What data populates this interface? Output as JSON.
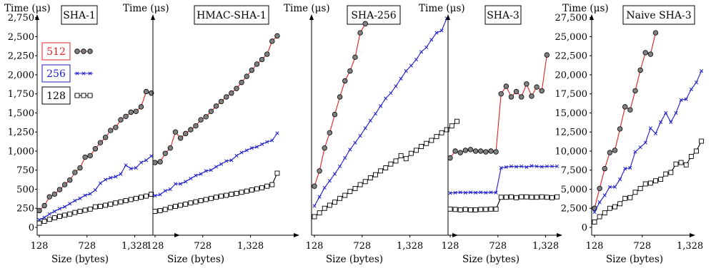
{
  "chart_data": [
    {
      "type": "line",
      "title": "SHA-1",
      "ylabel": "Time (μs)",
      "xlabel": "Size (bytes)",
      "xticks": [
        128,
        728,
        1328
      ],
      "xtick_labels": [
        "128",
        "728",
        "1,328"
      ],
      "yticks": [
        0,
        250,
        500,
        750,
        1000,
        1250,
        1500,
        1750,
        2000,
        2250,
        2500,
        2750
      ],
      "ytick_labels": [
        "0",
        "250",
        "500",
        "750",
        "1,000",
        "1,250",
        "1,500",
        "1,750",
        "2,000",
        "2,250",
        "2,500",
        "2,750"
      ],
      "ylim": [
        0,
        2850
      ],
      "xlim": [
        128,
        1900
      ],
      "legend": {
        "entries": [
          {
            "label": "512",
            "color": "#e02020"
          },
          {
            "label": "256",
            "color": "#1c1cc8"
          },
          {
            "label": "128",
            "color": "#000000"
          }
        ]
      },
      "series": [
        {
          "name": "512",
          "color": "#e02020",
          "marker": "circle",
          "start": 128,
          "step": 64,
          "values": [
            220,
            285,
            400,
            435,
            495,
            560,
            620,
            720,
            780,
            920,
            940,
            1030,
            1110,
            1180,
            1270,
            1310,
            1410,
            1455,
            1510,
            1520,
            1580,
            1780,
            1760
          ]
        },
        {
          "name": "256",
          "color": "#1c1cc8",
          "marker": "x",
          "start": 128,
          "step": 64,
          "values": [
            100,
            130,
            175,
            210,
            245,
            270,
            310,
            350,
            380,
            420,
            440,
            490,
            580,
            625,
            650,
            665,
            700,
            815,
            770,
            780,
            850,
            880,
            935
          ]
        },
        {
          "name": "128",
          "color": "#000000",
          "marker": "square",
          "start": 128,
          "step": 64,
          "values": [
            55,
            80,
            105,
            125,
            145,
            160,
            175,
            195,
            210,
            225,
            240,
            270,
            275,
            290,
            305,
            320,
            335,
            350,
            365,
            380,
            395,
            410,
            435
          ]
        }
      ]
    },
    {
      "type": "line",
      "title": "HMAC-SHA-1",
      "ylabel": "Time (μs)",
      "xlabel": "Size (bytes)",
      "xticks": [
        128,
        728,
        1328
      ],
      "xtick_labels": [
        "128",
        "728",
        "1,328"
      ],
      "ylim": [
        0,
        2850
      ],
      "xlim": [
        128,
        1900
      ],
      "series": [
        {
          "name": "512",
          "color": "#e02020",
          "marker": "circle",
          "start": 128,
          "step": 64,
          "values": [
            850,
            860,
            970,
            1040,
            1250,
            1170,
            1230,
            1280,
            1330,
            1410,
            1450,
            1520,
            1590,
            1650,
            1710,
            1760,
            1820,
            1900,
            1980,
            2060,
            2140,
            2200,
            2270,
            2440,
            2510
          ]
        },
        {
          "name": "256",
          "color": "#1c1cc8",
          "marker": "x",
          "start": 128,
          "step": 64,
          "values": [
            415,
            430,
            480,
            500,
            570,
            570,
            600,
            640,
            680,
            700,
            740,
            750,
            795,
            830,
            870,
            880,
            940,
            980,
            1010,
            1040,
            1055,
            1090,
            1120,
            1140,
            1235
          ]
        },
        {
          "name": "128",
          "color": "#000000",
          "marker": "square",
          "start": 128,
          "step": 64,
          "values": [
            210,
            220,
            235,
            260,
            275,
            290,
            305,
            320,
            335,
            350,
            365,
            380,
            395,
            410,
            420,
            435,
            445,
            460,
            475,
            490,
            505,
            520,
            540,
            560,
            710
          ]
        }
      ]
    },
    {
      "type": "line",
      "title": "SHA-256",
      "ylabel": "Time (μs)",
      "xlabel": "Size (bytes)",
      "xticks": [
        128,
        728,
        1328
      ],
      "xtick_labels": [
        "128",
        "728",
        "1,328"
      ],
      "ylim": [
        0,
        2850
      ],
      "xlim": [
        128,
        1900
      ],
      "series": [
        {
          "name": "512",
          "color": "#e02020",
          "marker": "circle",
          "start": 128,
          "step": 64,
          "values": [
            540,
            740,
            1040,
            1240,
            1480,
            1710,
            1920,
            2050,
            2230,
            2550,
            2670
          ]
        },
        {
          "name": "256",
          "color": "#1c1cc8",
          "marker": "x",
          "start": 128,
          "step": 64,
          "values": [
            280,
            400,
            520,
            610,
            700,
            800,
            910,
            1020,
            1110,
            1200,
            1300,
            1400,
            1490,
            1590,
            1690,
            1760,
            1850,
            1950,
            2050,
            2120,
            2200,
            2300,
            2360,
            2460,
            2550,
            2580,
            2740
          ]
        },
        {
          "name": "128",
          "color": "#000000",
          "marker": "square",
          "start": 128,
          "step": 64,
          "values": [
            140,
            190,
            250,
            290,
            330,
            380,
            420,
            470,
            510,
            560,
            600,
            650,
            690,
            740,
            780,
            830,
            870,
            940,
            900,
            970,
            1010,
            1060,
            1100,
            1140,
            1190,
            1240,
            1280,
            1330,
            1390
          ]
        }
      ]
    },
    {
      "type": "line",
      "title": "SHA-3",
      "ylabel": "Time (μs)",
      "xlabel": "Size (bytes)",
      "xticks": [
        128,
        728,
        1328
      ],
      "xtick_labels": [
        "128",
        "728",
        "1,328"
      ],
      "ylim": [
        0,
        2850
      ],
      "xlim": [
        128,
        1900
      ],
      "series": [
        {
          "name": "512",
          "color": "#e02020",
          "marker": "circle",
          "start": 128,
          "step": 64,
          "values": [
            910,
            1000,
            980,
            1010,
            1020,
            1000,
            1000,
            990,
            1000,
            990,
            1750,
            1850,
            1710,
            1780,
            1710,
            1880,
            1720,
            1840,
            1790,
            2260
          ]
        },
        {
          "name": "256",
          "color": "#1c1cc8",
          "marker": "x",
          "start": 128,
          "step": 64,
          "values": [
            450,
            455,
            460,
            455,
            460,
            455,
            460,
            455,
            460,
            455,
            780,
            790,
            800,
            795,
            800,
            790,
            805,
            800,
            795,
            800,
            800,
            800
          ]
        },
        {
          "name": "128",
          "color": "#000000",
          "marker": "square",
          "start": 128,
          "step": 64,
          "values": [
            240,
            235,
            230,
            235,
            230,
            230,
            235,
            235,
            240,
            240,
            395,
            395,
            400,
            390,
            400,
            400,
            395,
            395,
            400,
            395,
            390,
            400
          ]
        }
      ]
    },
    {
      "type": "line",
      "title": "Naive SHA-3",
      "ylabel": "Time (μs)",
      "xlabel": "Size (bytes)",
      "xticks": [
        128,
        728,
        1328
      ],
      "xtick_labels": [
        "128",
        "728",
        "1,328"
      ],
      "yticks": [
        0,
        2500,
        5000,
        7500,
        10000,
        12500,
        15000,
        17500,
        20000,
        22500,
        25000,
        27500
      ],
      "ytick_labels": [
        "0",
        "2,500",
        "5,000",
        "7,500",
        "10,000",
        "12,500",
        "15,000",
        "17,500",
        "20,000",
        "22,500",
        "25,000",
        "27,500"
      ],
      "ylim": [
        0,
        28500
      ],
      "xlim": [
        128,
        1900
      ],
      "series": [
        {
          "name": "512",
          "color": "#e02020",
          "marker": "circle",
          "start": 128,
          "step": 64,
          "values": [
            2500,
            5100,
            7700,
            9800,
            10100,
            12900,
            15800,
            15400,
            17900,
            20600,
            22900,
            22700,
            25500
          ]
        },
        {
          "name": "256",
          "color": "#1c1cc8",
          "marker": "x",
          "start": 128,
          "step": 64,
          "values": [
            2000,
            3300,
            4200,
            5300,
            5300,
            6300,
            7700,
            7800,
            9900,
            10500,
            11100,
            13000,
            12300,
            13800,
            15000,
            13800,
            15000,
            16700,
            16800,
            18100,
            19000,
            20500
          ]
        },
        {
          "name": "128",
          "color": "#000000",
          "marker": "square",
          "start": 128,
          "step": 64,
          "values": [
            700,
            1400,
            1900,
            2500,
            2700,
            3100,
            3800,
            3900,
            4600,
            5100,
            5700,
            5800,
            6100,
            6300,
            7000,
            7200,
            8300,
            8500,
            8200,
            9300,
            10000,
            11300
          ]
        }
      ]
    }
  ]
}
